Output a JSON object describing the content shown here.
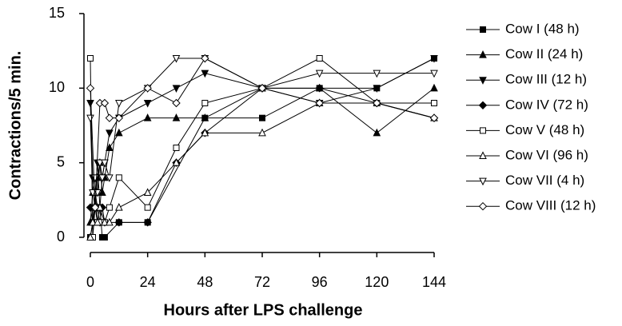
{
  "chart_data": {
    "type": "line",
    "xlabel": "Hours after LPS challenge",
    "ylabel": "Contractions/5 min.",
    "xlim": [
      0,
      144
    ],
    "xticks": [
      0,
      24,
      48,
      72,
      96,
      120,
      144
    ],
    "ylim": [
      0,
      15
    ],
    "yticks": [
      0,
      5,
      10,
      15
    ],
    "series": [
      {
        "name": "Cow I (48 h)",
        "color": "#000000",
        "marker": "square",
        "filled": true,
        "x": [
          0,
          1,
          2,
          3,
          4,
          5,
          6,
          12,
          24,
          48,
          72,
          96,
          120,
          144
        ],
        "values": [
          0,
          1,
          2,
          1,
          2,
          0,
          0,
          1,
          1,
          8,
          8,
          10,
          10,
          12
        ]
      },
      {
        "name": "Cow II (24 h)",
        "color": "#000000",
        "marker": "triangle",
        "filled": true,
        "x": [
          0,
          1,
          2,
          3,
          4,
          5,
          6,
          8,
          12,
          24,
          36,
          48,
          72,
          96,
          120,
          144
        ],
        "values": [
          1,
          3,
          2,
          4,
          5,
          3,
          4,
          6,
          7,
          8,
          8,
          8,
          10,
          10,
          7,
          10
        ]
      },
      {
        "name": "Cow III (12 h)",
        "color": "#000000",
        "marker": "triangle-down",
        "filled": true,
        "x": [
          0,
          1,
          2,
          3,
          4,
          5,
          6,
          8,
          12,
          24,
          36,
          48,
          72,
          96,
          120,
          144
        ],
        "values": [
          9,
          4,
          3,
          5,
          2,
          4,
          5,
          7,
          8,
          9,
          10,
          11,
          10,
          9,
          10,
          12
        ]
      },
      {
        "name": "Cow IV (72 h)",
        "color": "#000000",
        "marker": "diamond",
        "filled": true,
        "x": [
          0,
          1,
          2,
          3,
          4,
          5,
          6,
          12,
          24,
          36,
          48,
          72,
          96,
          120,
          144
        ],
        "values": [
          2,
          1,
          3,
          2,
          1,
          2,
          1,
          1,
          1,
          5,
          7,
          10,
          10,
          9,
          8
        ]
      },
      {
        "name": "Cow V (48 h)",
        "color": "#000000",
        "marker": "square",
        "filled": false,
        "x": [
          0,
          1,
          2,
          3,
          4,
          6,
          8,
          12,
          24,
          36,
          48,
          72,
          96,
          120,
          144
        ],
        "values": [
          12,
          0,
          2,
          1,
          1,
          1,
          2,
          4,
          2,
          6,
          9,
          10,
          12,
          9,
          9
        ]
      },
      {
        "name": "Cow VI (96 h)",
        "color": "#000000",
        "marker": "triangle",
        "filled": false,
        "x": [
          0,
          1,
          2,
          3,
          4,
          6,
          8,
          12,
          24,
          36,
          48,
          72,
          96,
          120,
          144
        ],
        "values": [
          0,
          1,
          3,
          1,
          2,
          1,
          1,
          2,
          3,
          5,
          7,
          7,
          9,
          9,
          8
        ]
      },
      {
        "name": "Cow VII (4 h)",
        "color": "#000000",
        "marker": "triangle-down",
        "filled": false,
        "x": [
          0,
          1,
          2,
          3,
          4,
          5,
          6,
          8,
          12,
          24,
          36,
          48,
          72,
          96,
          120,
          144
        ],
        "values": [
          8,
          3,
          4,
          3,
          5,
          4,
          5,
          4,
          9,
          10,
          12,
          12,
          10,
          11,
          11,
          11
        ]
      },
      {
        "name": "Cow VIII (12 h)",
        "color": "#000000",
        "marker": "diamond",
        "filled": false,
        "x": [
          0,
          2,
          4,
          6,
          8,
          12,
          24,
          36,
          48,
          72,
          96,
          120,
          144
        ],
        "values": [
          10,
          2,
          9,
          9,
          8,
          8,
          10,
          9,
          12,
          10,
          9,
          9,
          8
        ]
      }
    ]
  }
}
